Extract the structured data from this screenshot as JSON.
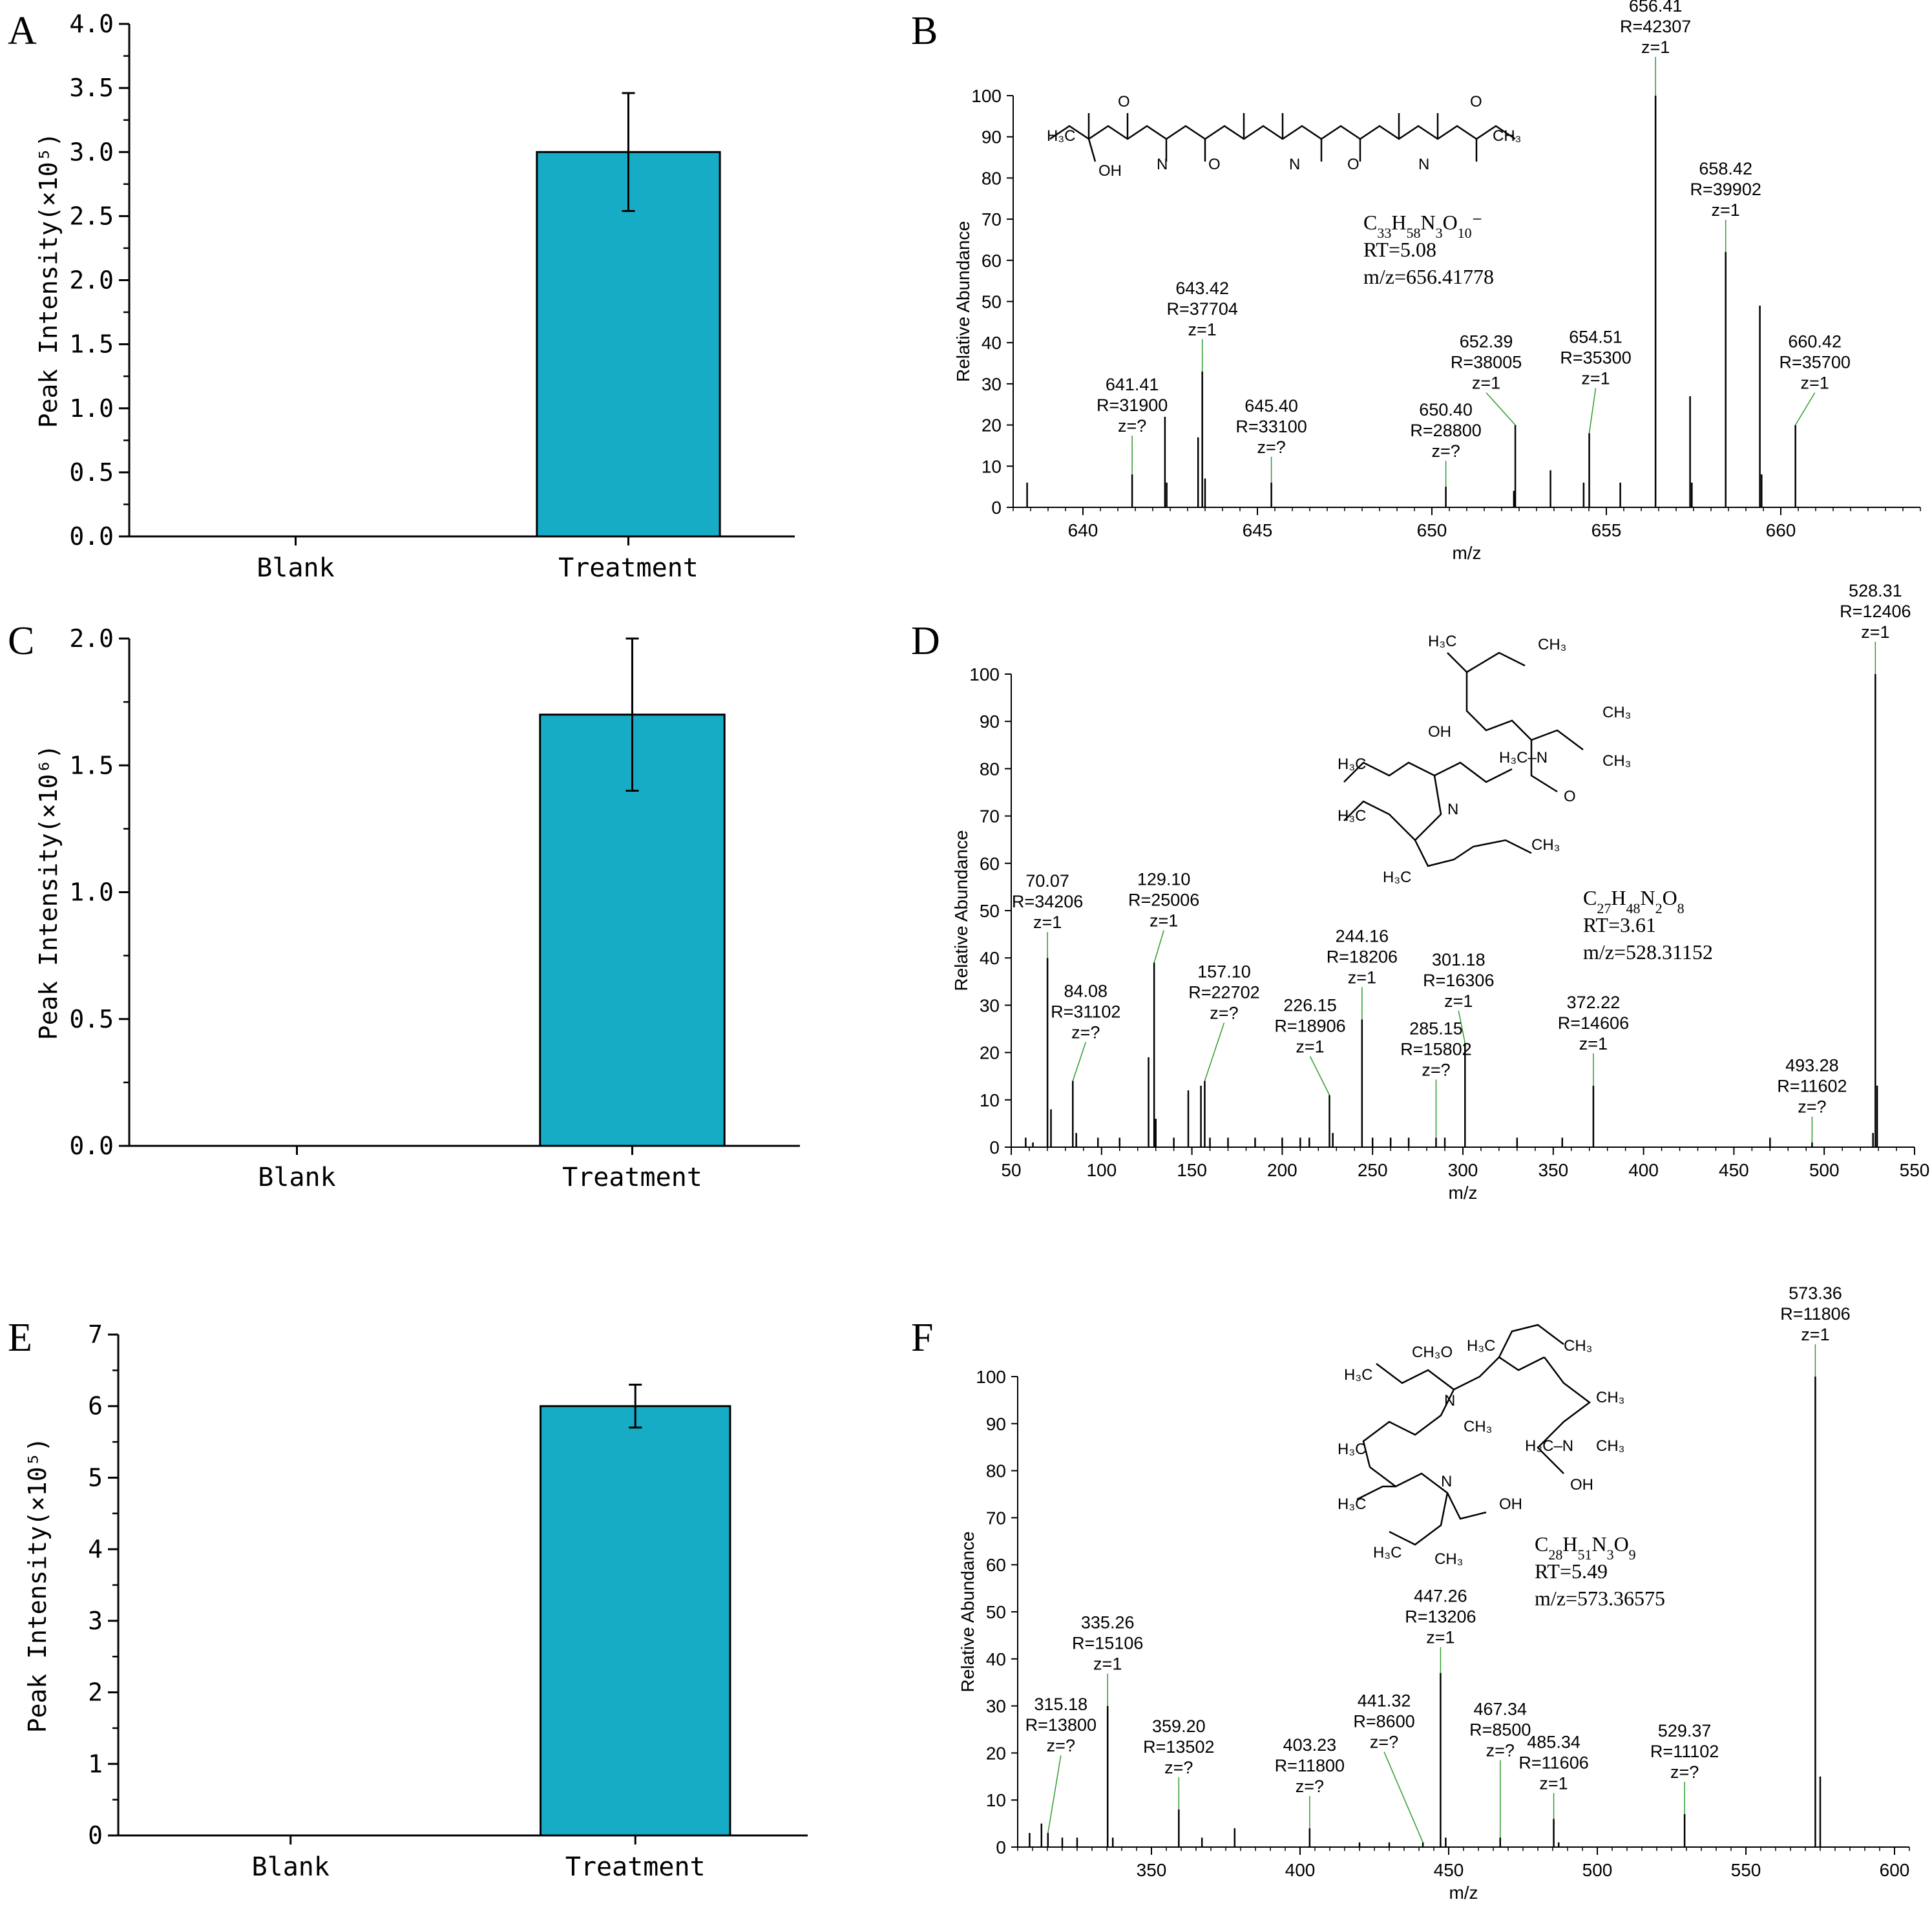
{
  "colors": {
    "bar": "#16acc6",
    "axis": "#000000",
    "peak": "#000000",
    "leader": "#2e9b2e"
  },
  "panels": {
    "A": {
      "letter": "A"
    },
    "B": {
      "letter": "B"
    },
    "C": {
      "letter": "C"
    },
    "D": {
      "letter": "D"
    },
    "E": {
      "letter": "E"
    },
    "F": {
      "letter": "F"
    }
  },
  "chart_data": [
    {
      "id": "A",
      "type": "bar",
      "categories": [
        "Blank",
        "Treatment"
      ],
      "values": [
        0,
        3.0
      ],
      "errors": [
        0,
        0.46
      ],
      "ylabel": "Peak Intensity(×10⁵)",
      "ylim": [
        0,
        4.0
      ],
      "yticks": [
        "0.0",
        "0.5",
        "1.0",
        "1.5",
        "2.0",
        "2.5",
        "3.0",
        "3.5",
        "4.0"
      ]
    },
    {
      "id": "B",
      "type": "line",
      "xlabel": "m/z",
      "ylabel": "Relative Abundance",
      "xlim": [
        638,
        664
      ],
      "ylim": [
        0,
        100
      ],
      "xticks": [
        "640",
        "645",
        "650",
        "655",
        "660"
      ],
      "yticks": [
        "0",
        "10",
        "20",
        "30",
        "40",
        "50",
        "60",
        "70",
        "80",
        "90",
        "100"
      ],
      "formula": "C33H58N3O10⁻",
      "rt": "RT=5.08",
      "mz": "m/z=656.41778",
      "labels": [
        {
          "mz": "641.41",
          "r": "R=31900",
          "z": "z=?"
        },
        {
          "mz": "643.42",
          "r": "R=37704",
          "z": "z=1"
        },
        {
          "mz": "645.40",
          "r": "R=33100",
          "z": "z=?"
        },
        {
          "mz": "650.40",
          "r": "R=28800",
          "z": "z=?"
        },
        {
          "mz": "652.39",
          "r": "R=38005",
          "z": "z=1"
        },
        {
          "mz": "654.51",
          "r": "R=35300",
          "z": "z=1"
        },
        {
          "mz": "656.41",
          "r": "R=42307",
          "z": "z=1"
        },
        {
          "mz": "658.42",
          "r": "R=39902",
          "z": "z=1"
        },
        {
          "mz": "660.42",
          "r": "R=35700",
          "z": "z=1"
        }
      ],
      "peaks": [
        [
          638.4,
          6
        ],
        [
          641.41,
          8
        ],
        [
          642.35,
          22
        ],
        [
          642.4,
          6
        ],
        [
          643.3,
          17
        ],
        [
          643.42,
          33
        ],
        [
          643.5,
          7
        ],
        [
          645.4,
          6
        ],
        [
          650.4,
          5
        ],
        [
          652.35,
          4
        ],
        [
          652.39,
          20
        ],
        [
          653.4,
          9
        ],
        [
          654.35,
          6
        ],
        [
          654.51,
          18
        ],
        [
          655.4,
          6
        ],
        [
          656.41,
          100
        ],
        [
          657.4,
          27
        ],
        [
          657.45,
          6
        ],
        [
          658.42,
          62
        ],
        [
          659.4,
          49
        ],
        [
          659.45,
          8
        ],
        [
          660.42,
          20
        ]
      ]
    },
    {
      "id": "C",
      "type": "bar",
      "categories": [
        "Blank",
        "Treatment"
      ],
      "values": [
        0,
        1.7
      ],
      "errors": [
        0,
        0.3
      ],
      "ylabel": "Peak Intensity(×10⁶)",
      "ylim": [
        0,
        2.0
      ],
      "yticks": [
        "0.0",
        "0.5",
        "1.0",
        "1.5",
        "2.0"
      ]
    },
    {
      "id": "D",
      "type": "line",
      "xlabel": "m/z",
      "ylabel": "Relative Abundance",
      "xlim": [
        50,
        550
      ],
      "ylim": [
        0,
        100
      ],
      "xticks": [
        "50",
        "100",
        "150",
        "200",
        "250",
        "300",
        "350",
        "400",
        "450",
        "500",
        "550"
      ],
      "yticks": [
        "0",
        "10",
        "20",
        "30",
        "40",
        "50",
        "60",
        "70",
        "80",
        "90",
        "100"
      ],
      "formula": "C27H48N2O8",
      "rt": "RT=3.61",
      "mz": "m/z=528.31152",
      "labels": [
        {
          "mz": "70.07",
          "r": "R=34206",
          "z": "z=1"
        },
        {
          "mz": "84.08",
          "r": "R=31102",
          "z": "z=?"
        },
        {
          "mz": "129.10",
          "r": "R=25006",
          "z": "z=1"
        },
        {
          "mz": "157.10",
          "r": "R=22702",
          "z": "z=?"
        },
        {
          "mz": "226.15",
          "r": "R=18906",
          "z": "z=1"
        },
        {
          "mz": "244.16",
          "r": "R=18206",
          "z": "z=1"
        },
        {
          "mz": "285.15",
          "r": "R=15802",
          "z": "z=?"
        },
        {
          "mz": "301.18",
          "r": "R=16306",
          "z": "z=1"
        },
        {
          "mz": "372.22",
          "r": "R=14606",
          "z": "z=1"
        },
        {
          "mz": "493.28",
          "r": "R=11602",
          "z": "z=?"
        },
        {
          "mz": "528.31",
          "r": "R=12406",
          "z": "z=1"
        }
      ],
      "peaks": [
        [
          58,
          2
        ],
        [
          62,
          1
        ],
        [
          70.07,
          40
        ],
        [
          72,
          8
        ],
        [
          84.08,
          14
        ],
        [
          86,
          3
        ],
        [
          98,
          2
        ],
        [
          110,
          2
        ],
        [
          126,
          19
        ],
        [
          129.1,
          39
        ],
        [
          130,
          6
        ],
        [
          140,
          2
        ],
        [
          148,
          12
        ],
        [
          155,
          13
        ],
        [
          157.1,
          14
        ],
        [
          160,
          2
        ],
        [
          170,
          2
        ],
        [
          185,
          2
        ],
        [
          200,
          2
        ],
        [
          210,
          2
        ],
        [
          215,
          2
        ],
        [
          226.15,
          11
        ],
        [
          228,
          3
        ],
        [
          244.16,
          27
        ],
        [
          250,
          2
        ],
        [
          260,
          2
        ],
        [
          270,
          2
        ],
        [
          285.15,
          2
        ],
        [
          290,
          2
        ],
        [
          301.18,
          22
        ],
        [
          330,
          2
        ],
        [
          355,
          2
        ],
        [
          372.22,
          13
        ],
        [
          470,
          2
        ],
        [
          493.28,
          1
        ],
        [
          527,
          3
        ],
        [
          528.31,
          100
        ],
        [
          529.3,
          13
        ]
      ]
    },
    {
      "id": "E",
      "type": "bar",
      "categories": [
        "Blank",
        "Treatment"
      ],
      "values": [
        0,
        6.0
      ],
      "errors": [
        0,
        0.3
      ],
      "ylabel": "Peak Intensity(×10⁵)",
      "ylim": [
        0,
        7
      ],
      "yticks": [
        "0",
        "1",
        "2",
        "3",
        "4",
        "5",
        "6",
        "7"
      ]
    },
    {
      "id": "F",
      "type": "line",
      "xlabel": "m/z",
      "ylabel": "Relative Abundance",
      "xlim": [
        305,
        605
      ],
      "ylim": [
        0,
        100
      ],
      "xticks": [
        "350",
        "400",
        "450",
        "500",
        "550",
        "600"
      ],
      "yticks": [
        "0",
        "10",
        "20",
        "30",
        "40",
        "50",
        "60",
        "70",
        "80",
        "90",
        "100"
      ],
      "formula": "C28H51N3O9",
      "rt": "RT=5.49",
      "mz": "m/z=573.36575",
      "labels": [
        {
          "mz": "315.18",
          "r": "R=13800",
          "z": "z=?"
        },
        {
          "mz": "335.26",
          "r": "R=15106",
          "z": "z=1"
        },
        {
          "mz": "359.20",
          "r": "R=13502",
          "z": "z=?"
        },
        {
          "mz": "403.23",
          "r": "R=11800",
          "z": "z=?"
        },
        {
          "mz": "441.32",
          "r": "R=8600",
          "z": "z=?"
        },
        {
          "mz": "447.26",
          "r": "R=13206",
          "z": "z=1"
        },
        {
          "mz": "467.34",
          "r": "R=8500",
          "z": "z=?"
        },
        {
          "mz": "485.34",
          "r": "R=11606",
          "z": "z=1"
        },
        {
          "mz": "529.37",
          "r": "R=11102",
          "z": "z=?"
        },
        {
          "mz": "573.36",
          "r": "R=11806",
          "z": "z=1"
        }
      ],
      "peaks": [
        [
          309,
          3
        ],
        [
          313,
          5
        ],
        [
          315.18,
          3
        ],
        [
          320,
          2
        ],
        [
          325,
          2
        ],
        [
          335.26,
          30
        ],
        [
          337,
          2
        ],
        [
          359.2,
          8
        ],
        [
          367,
          2
        ],
        [
          378,
          4
        ],
        [
          403.23,
          4
        ],
        [
          420,
          1
        ],
        [
          430,
          1
        ],
        [
          441.32,
          1
        ],
        [
          447.26,
          37
        ],
        [
          449,
          2
        ],
        [
          467.34,
          2
        ],
        [
          485.34,
          6
        ],
        [
          487,
          1
        ],
        [
          529.37,
          7
        ],
        [
          573.36,
          100
        ],
        [
          575,
          15
        ]
      ]
    }
  ]
}
